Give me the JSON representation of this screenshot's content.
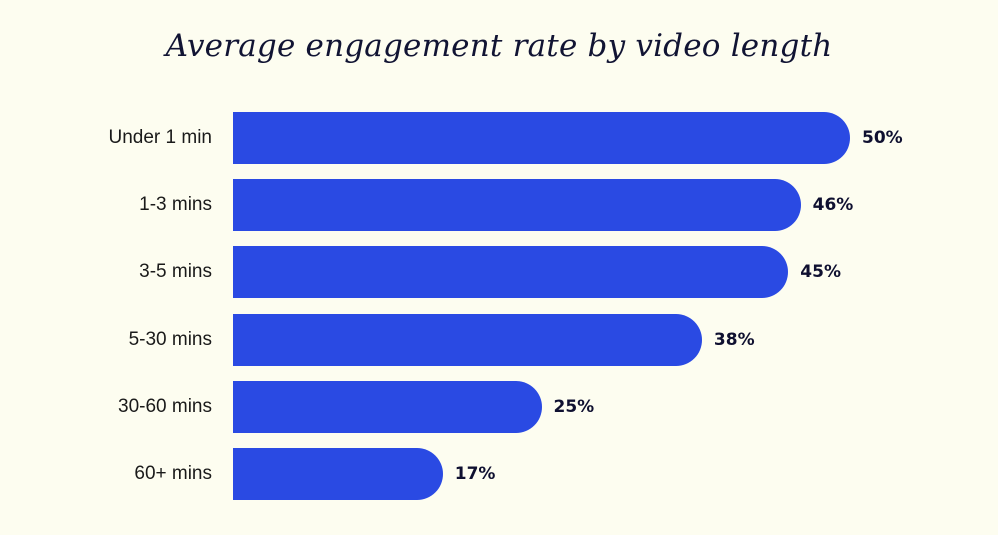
{
  "chart_data": {
    "type": "bar",
    "orientation": "horizontal",
    "title": "Average engagement rate by video length",
    "categories": [
      "Under 1 min",
      "1-3 mins",
      "3-5 mins",
      "5-30 mins",
      "30-60 mins",
      "60+ mins"
    ],
    "values": [
      50,
      46,
      45,
      38,
      25,
      17
    ],
    "value_labels": [
      "50%",
      "46%",
      "45%",
      "38%",
      "25%",
      "17%"
    ],
    "unit": "%",
    "xlim": [
      0,
      50
    ],
    "grid": false,
    "legend": "none",
    "bar_color": "#2a4ae3"
  }
}
